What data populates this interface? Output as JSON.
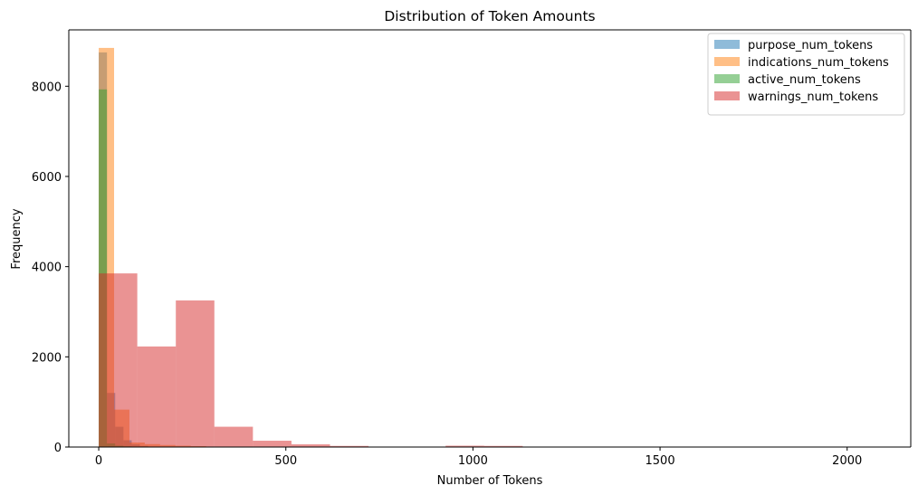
{
  "chart_data": {
    "type": "histogram",
    "title": "Distribution of Token Amounts",
    "xlabel": "Number of Tokens",
    "ylabel": "Frequency",
    "xlim": [
      -80,
      2170
    ],
    "ylim": [
      0,
      9250
    ],
    "xticks": [
      0,
      500,
      1000,
      1500,
      2000
    ],
    "yticks": [
      0,
      2000,
      4000,
      6000,
      8000
    ],
    "grid": false,
    "legend_position": "top-right",
    "alpha": 0.5,
    "series": [
      {
        "name": "purpose_num_tokens",
        "color": "#1f77b4",
        "bins": [
          [
            0,
            22,
            8750
          ],
          [
            22,
            44,
            1200
          ],
          [
            44,
            66,
            450
          ],
          [
            66,
            88,
            150
          ],
          [
            88,
            110,
            60
          ],
          [
            110,
            132,
            25
          ]
        ]
      },
      {
        "name": "indications_num_tokens",
        "color": "#ff7f0e",
        "bins": [
          [
            0,
            41,
            8850
          ],
          [
            41,
            82,
            830
          ],
          [
            82,
            123,
            100
          ],
          [
            123,
            164,
            65
          ],
          [
            164,
            205,
            45
          ],
          [
            205,
            246,
            30
          ],
          [
            246,
            287,
            20
          ],
          [
            287,
            328,
            10
          ]
        ]
      },
      {
        "name": "active_num_tokens",
        "color": "#2ca02c",
        "bins": [
          [
            0,
            22,
            7930
          ],
          [
            22,
            44,
            80
          ],
          [
            44,
            66,
            30
          ],
          [
            66,
            88,
            15
          ],
          [
            88,
            110,
            8
          ]
        ]
      },
      {
        "name": "warnings_num_tokens",
        "color": "#d62728",
        "bins": [
          [
            0,
            103,
            3850
          ],
          [
            103,
            206,
            2230
          ],
          [
            206,
            309,
            3250
          ],
          [
            309,
            412,
            450
          ],
          [
            412,
            515,
            140
          ],
          [
            515,
            618,
            60
          ],
          [
            618,
            721,
            25
          ],
          [
            721,
            824,
            5
          ],
          [
            824,
            927,
            3
          ],
          [
            927,
            1030,
            30
          ],
          [
            1030,
            1133,
            25
          ],
          [
            1133,
            1236,
            2
          ],
          [
            1236,
            2060,
            1
          ]
        ]
      }
    ]
  }
}
